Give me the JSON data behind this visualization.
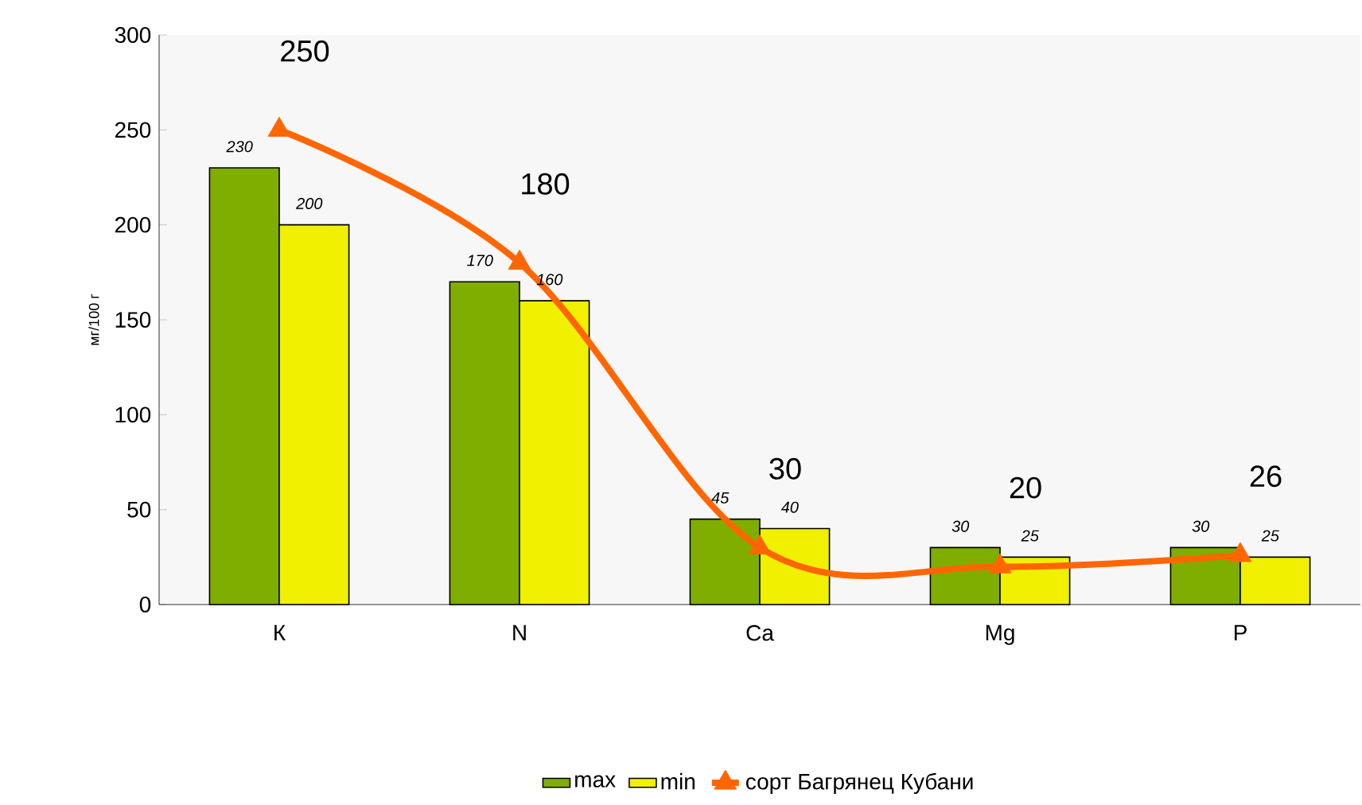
{
  "chart_data": {
    "type": "bar",
    "ylabel": "мг/100 г",
    "categories": [
      "К",
      "N",
      "Ca",
      "Mg",
      "P"
    ],
    "series": [
      {
        "name": "max",
        "color": "#7fae00",
        "values": [
          230,
          170,
          45,
          30,
          30
        ]
      },
      {
        "name": "min",
        "color": "#f0f000",
        "values": [
          200,
          160,
          40,
          25,
          25
        ]
      },
      {
        "name": "сорт Багрянец Кубани",
        "type": "line",
        "color": "#ff6600",
        "marker": "triangle",
        "values": [
          250,
          180,
          30,
          20,
          26
        ]
      }
    ],
    "ylim": [
      0,
      300
    ],
    "yticks": [
      0,
      50,
      100,
      150,
      200,
      250,
      300
    ],
    "grid": false,
    "legend": "bottom",
    "data_labels": true
  }
}
